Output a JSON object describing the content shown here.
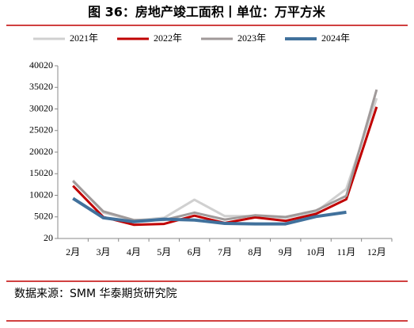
{
  "title": "图 36：房地产竣工面积丨单位：万平方米",
  "source": "数据来源：SMM 华泰期货研究院",
  "chart_data": {
    "type": "line",
    "categories": [
      "2月",
      "3月",
      "4月",
      "5月",
      "6月",
      "7月",
      "8月",
      "9月",
      "10月",
      "11月",
      "12月"
    ],
    "series": [
      {
        "name": "2021年",
        "color": "#d0d0d0",
        "values": [
          13500,
          6000,
          4200,
          4800,
          9000,
          5200,
          5200,
          4800,
          6200,
          11500,
          32500
        ]
      },
      {
        "name": "2022年",
        "color": "#c00000",
        "values": [
          12200,
          5000,
          3200,
          3400,
          5300,
          3600,
          4900,
          4100,
          5700,
          9100,
          30500
        ]
      },
      {
        "name": "2023年",
        "color": "#a09a9a",
        "values": [
          13300,
          6300,
          4300,
          4300,
          6000,
          4400,
          5400,
          5000,
          6500,
          9900,
          34500
        ]
      },
      {
        "name": "2024年",
        "color": "#41719c",
        "values": [
          9300,
          4800,
          3900,
          4500,
          4300,
          3500,
          3400,
          3400,
          5100,
          6100,
          null
        ]
      }
    ],
    "ylim": [
      20,
      40020
    ],
    "yticks": [
      20,
      5020,
      10020,
      15020,
      20020,
      25020,
      30020,
      35020,
      40020
    ]
  }
}
